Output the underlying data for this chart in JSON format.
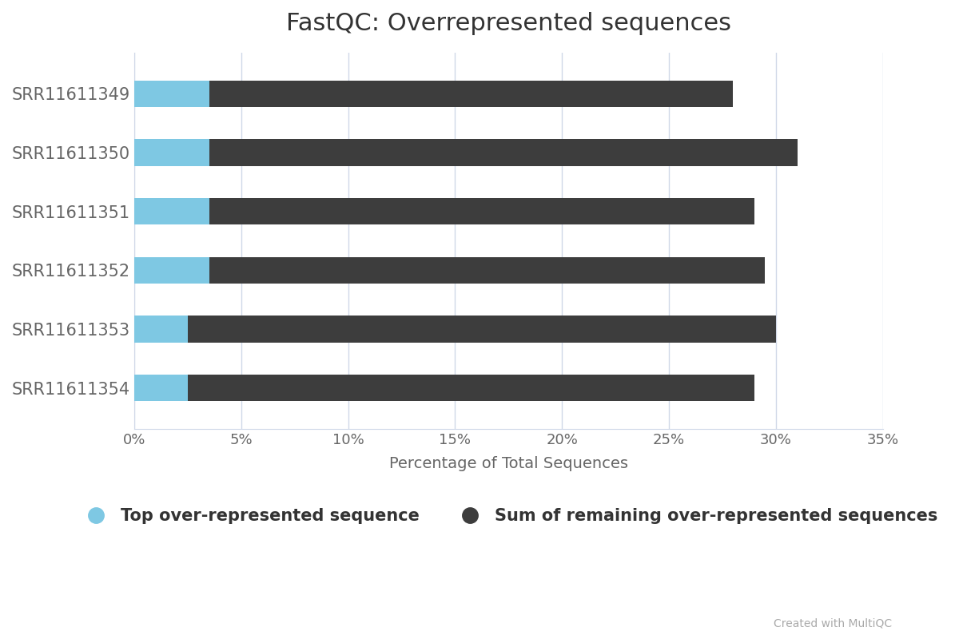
{
  "title": "FastQC: Overrepresented sequences",
  "xlabel": "Percentage of Total Sequences",
  "samples": [
    "SRR11611349",
    "SRR11611350",
    "SRR11611351",
    "SRR11611352",
    "SRR11611353",
    "SRR11611354"
  ],
  "top_seq": [
    3.5,
    3.5,
    3.5,
    3.5,
    2.5,
    2.5
  ],
  "remaining_seq": [
    24.5,
    27.5,
    25.5,
    26.0,
    27.5,
    26.5
  ],
  "top_color": "#7ec8e3",
  "remaining_color": "#3d3d3d",
  "bg_color": "#ffffff",
  "grid_color": "#d0d8e8",
  "label_color": "#666666",
  "tick_label_color": "#666666",
  "xlim": [
    0,
    35
  ],
  "xticks": [
    0,
    5,
    10,
    15,
    20,
    25,
    30,
    35
  ],
  "xtick_labels": [
    "0%",
    "5%",
    "10%",
    "15%",
    "20%",
    "25%",
    "30%",
    "35%"
  ],
  "legend_top_label": "Top over-represented sequence",
  "legend_remaining_label": "Sum of remaining over-represented sequences",
  "credit_text": "Created with MultiQC",
  "title_fontsize": 22,
  "axis_label_fontsize": 14,
  "tick_fontsize": 13,
  "sample_label_fontsize": 15,
  "legend_fontsize": 15,
  "credit_fontsize": 10,
  "bar_height": 0.45
}
